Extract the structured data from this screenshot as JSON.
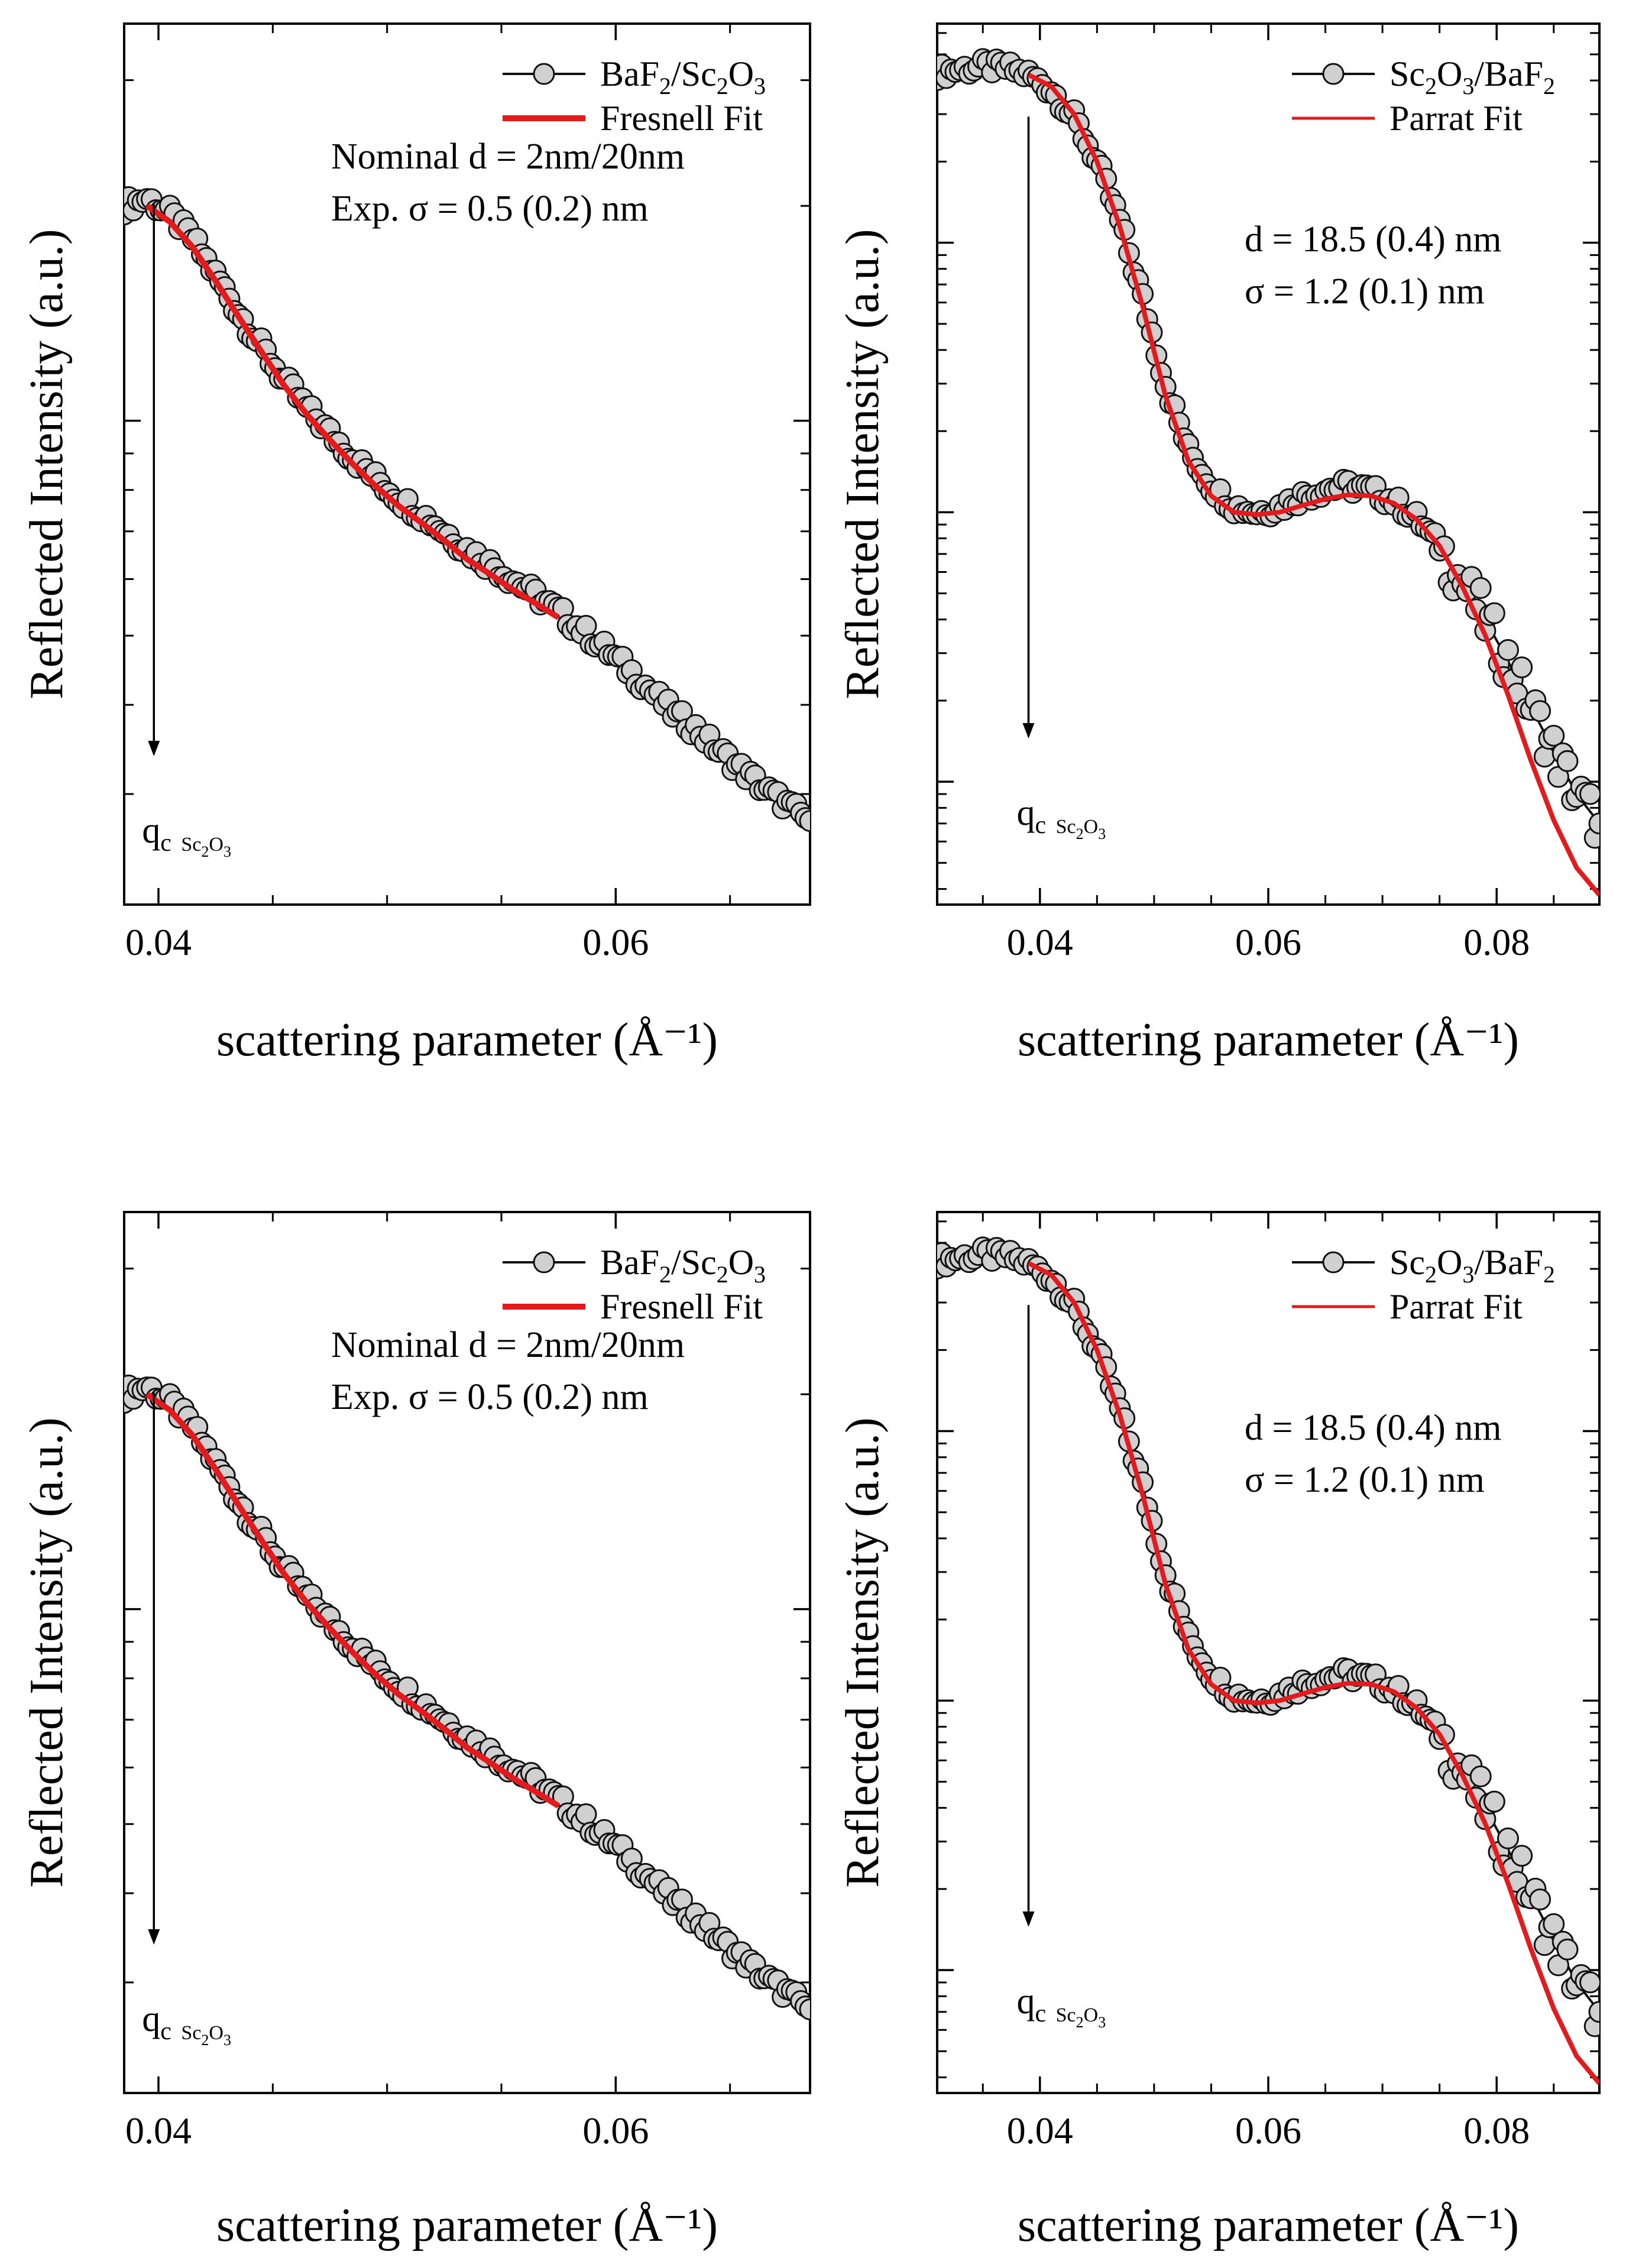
{
  "chart_data": [
    {
      "type": "scatter",
      "title": "",
      "xlabel": "scattering parameter",
      "xlabel_unit": "(Å⁻¹)",
      "ylabel": "Reflected Intensity (a.u.)",
      "xlim": [
        0.0385,
        0.0685
      ],
      "yscale": "log",
      "ylim": [
        0.21,
        3.6
      ],
      "yticks_major": [
        1,
        0.3
      ],
      "xticks": [
        0.04,
        0.06
      ],
      "xtick_labels": [
        "0.04",
        "0.06"
      ],
      "series": [
        {
          "name": "BaF2/Sc2O3",
          "name_main": "BaF",
          "name_sub1": "2",
          "name_mid": "/Sc",
          "name_sub2": "2",
          "name_end": "O",
          "name_sub3": "3",
          "style": "line+markers",
          "x": [
            0.0385,
            0.0395,
            0.0405,
            0.0415,
            0.0425,
            0.0435,
            0.0445,
            0.0455,
            0.0465,
            0.0475,
            0.0485,
            0.0495,
            0.0505,
            0.0515,
            0.0525,
            0.0535,
            0.0545,
            0.0555,
            0.0565,
            0.0575,
            0.0585,
            0.0595,
            0.0605,
            0.0615,
            0.0625,
            0.0635,
            0.0645,
            0.0655,
            0.0665,
            0.0675,
            0.0685
          ],
          "y": [
            2.0,
            2.05,
            1.95,
            1.8,
            1.6,
            1.42,
            1.27,
            1.14,
            1.04,
            0.96,
            0.89,
            0.83,
            0.78,
            0.74,
            0.7,
            0.66,
            0.63,
            0.6,
            0.57,
            0.54,
            0.51,
            0.48,
            0.45,
            0.42,
            0.39,
            0.37,
            0.345,
            0.325,
            0.305,
            0.29,
            0.275
          ]
        },
        {
          "name": "Fresnell Fit",
          "style": "line",
          "color": "#e41a1c",
          "x": [
            0.0395,
            0.0405,
            0.0415,
            0.0425,
            0.0435,
            0.0445,
            0.0455,
            0.0465,
            0.0475,
            0.0485,
            0.0495,
            0.0505,
            0.0515,
            0.0525,
            0.0535,
            0.0545,
            0.0555,
            0.0565,
            0.0575
          ],
          "y": [
            2.0,
            1.9,
            1.75,
            1.57,
            1.4,
            1.25,
            1.12,
            1.02,
            0.94,
            0.87,
            0.81,
            0.76,
            0.72,
            0.68,
            0.64,
            0.61,
            0.58,
            0.555,
            0.53
          ]
        }
      ],
      "annotations": {
        "line1": "Nominal  d = 2nm/20nm",
        "line2": "Exp. σ = 0.5 (0.2) nm",
        "qc_main": "q",
        "qc_sub": "c",
        "qc_material": "Sc",
        "qc_material_sub1": "2",
        "qc_material_mid": "O",
        "qc_material_sub2": "3",
        "qc_arrow_x": 0.0398
      },
      "legend_position": "top-right"
    },
    {
      "type": "scatter",
      "title": "",
      "xlabel": "scattering parameter",
      "xlabel_unit": "(Å⁻¹)",
      "ylabel": "Reflected Intensity (a.u.)",
      "xlim": [
        0.031,
        0.089
      ],
      "yscale": "log",
      "ylim": [
        0.0035,
        6.5
      ],
      "yticks_major": [
        1,
        0.1,
        0.01
      ],
      "xticks": [
        0.04,
        0.06,
        0.08
      ],
      "xtick_labels": [
        "0.04",
        "0.06",
        "0.08"
      ],
      "series": [
        {
          "name": "Sc2O3/BaF2",
          "name_main": "Sc",
          "name_sub1": "2",
          "name_mid": "O",
          "name_sub2": "3",
          "name_end": "/BaF",
          "name_sub3": "2",
          "style": "line+markers",
          "x": [
            0.031,
            0.033,
            0.035,
            0.037,
            0.039,
            0.041,
            0.043,
            0.045,
            0.047,
            0.049,
            0.051,
            0.053,
            0.055,
            0.057,
            0.059,
            0.061,
            0.063,
            0.065,
            0.067,
            0.069,
            0.071,
            0.073,
            0.075,
            0.077,
            0.079,
            0.081,
            0.083,
            0.085,
            0.087,
            0.089
          ],
          "y": [
            4.3,
            4.4,
            4.5,
            4.45,
            4.2,
            3.7,
            2.9,
            2.0,
            1.2,
            0.62,
            0.3,
            0.17,
            0.125,
            0.105,
            0.1,
            0.105,
            0.115,
            0.122,
            0.125,
            0.12,
            0.11,
            0.095,
            0.075,
            0.055,
            0.04,
            0.028,
            0.019,
            0.013,
            0.009,
            0.007
          ]
        },
        {
          "name": "Parrat Fit",
          "style": "line",
          "color": "#e41a1c",
          "x": [
            0.039,
            0.041,
            0.043,
            0.045,
            0.047,
            0.049,
            0.051,
            0.053,
            0.055,
            0.057,
            0.059,
            0.061,
            0.063,
            0.065,
            0.067,
            0.069,
            0.071,
            0.073,
            0.075,
            0.077,
            0.079,
            0.081,
            0.083,
            0.085,
            0.087,
            0.089
          ],
          "y": [
            4.2,
            3.8,
            3.0,
            2.0,
            1.15,
            0.58,
            0.27,
            0.155,
            0.115,
            0.1,
            0.098,
            0.1,
            0.106,
            0.112,
            0.116,
            0.115,
            0.108,
            0.094,
            0.075,
            0.053,
            0.035,
            0.021,
            0.012,
            0.0072,
            0.0048,
            0.0038
          ]
        }
      ],
      "annotations": {
        "line1": "d = 18.5 (0.4) nm",
        "line2": "σ =   1.2 (0.1) nm",
        "qc_main": "q",
        "qc_sub": "c",
        "qc_material": "Sc",
        "qc_material_sub1": "2",
        "qc_material_mid": "O",
        "qc_material_sub2": "3",
        "qc_arrow_x": 0.039
      },
      "legend_position": "top-right"
    },
    {
      "type": "scatter",
      "title": "",
      "xlabel": "scattering parameter",
      "xlabel_unit": "(Å⁻¹)",
      "ylabel": "Reflected Intensity (a.u.)",
      "xlim": [
        0.0385,
        0.0685
      ],
      "yscale": "log",
      "ylim": [
        0.21,
        3.6
      ],
      "yticks_major": [
        1,
        0.3
      ],
      "xticks": [
        0.04,
        0.06
      ],
      "xtick_labels": [
        "0.04",
        "0.06"
      ],
      "series": [
        {
          "name": "BaF2/Sc2O3",
          "name_main": "BaF",
          "name_sub1": "2",
          "name_mid": "/Sc",
          "name_sub2": "2",
          "name_end": "O",
          "name_sub3": "3",
          "style": "line+markers",
          "x": [
            0.0385,
            0.0395,
            0.0405,
            0.0415,
            0.0425,
            0.0435,
            0.0445,
            0.0455,
            0.0465,
            0.0475,
            0.0485,
            0.0495,
            0.0505,
            0.0515,
            0.0525,
            0.0535,
            0.0545,
            0.0555,
            0.0565,
            0.0575,
            0.0585,
            0.0595,
            0.0605,
            0.0615,
            0.0625,
            0.0635,
            0.0645,
            0.0655,
            0.0665,
            0.0675,
            0.0685
          ],
          "y": [
            2.0,
            2.05,
            1.95,
            1.8,
            1.6,
            1.42,
            1.27,
            1.14,
            1.04,
            0.96,
            0.89,
            0.83,
            0.78,
            0.74,
            0.7,
            0.66,
            0.63,
            0.6,
            0.57,
            0.54,
            0.51,
            0.48,
            0.45,
            0.42,
            0.39,
            0.37,
            0.345,
            0.325,
            0.305,
            0.29,
            0.275
          ]
        },
        {
          "name": "Fresnell Fit",
          "style": "line",
          "color": "#e41a1c",
          "x": [
            0.0395,
            0.0405,
            0.0415,
            0.0425,
            0.0435,
            0.0445,
            0.0455,
            0.0465,
            0.0475,
            0.0485,
            0.0495,
            0.0505,
            0.0515,
            0.0525,
            0.0535,
            0.0545,
            0.0555,
            0.0565,
            0.0575
          ],
          "y": [
            2.0,
            1.9,
            1.75,
            1.57,
            1.4,
            1.25,
            1.12,
            1.02,
            0.94,
            0.87,
            0.81,
            0.76,
            0.72,
            0.68,
            0.64,
            0.61,
            0.58,
            0.555,
            0.53
          ]
        }
      ],
      "annotations": {
        "line1": "Nominal  d = 2nm/20nm",
        "line2": "Exp. σ = 0.5 (0.2) nm",
        "qc_main": "q",
        "qc_sub": "c",
        "qc_material": "Sc",
        "qc_material_sub1": "2",
        "qc_material_mid": "O",
        "qc_material_sub2": "3",
        "qc_arrow_x": 0.0398
      },
      "legend_position": "top-right"
    },
    {
      "type": "scatter",
      "title": "",
      "xlabel": "scattering parameter",
      "xlabel_unit": "(Å⁻¹)",
      "ylabel": "Reflected Intensity (a.u.)",
      "xlim": [
        0.031,
        0.089
      ],
      "yscale": "log",
      "ylim": [
        0.0035,
        6.5
      ],
      "yticks_major": [
        1,
        0.1,
        0.01
      ],
      "xticks": [
        0.04,
        0.06,
        0.08
      ],
      "xtick_labels": [
        "0.04",
        "0.06",
        "0.08"
      ],
      "series": [
        {
          "name": "Sc2O3/BaF2",
          "name_main": "Sc",
          "name_sub1": "2",
          "name_mid": "O",
          "name_sub2": "3",
          "name_end": "/BaF",
          "name_sub3": "2",
          "style": "line+markers",
          "x": [
            0.031,
            0.033,
            0.035,
            0.037,
            0.039,
            0.041,
            0.043,
            0.045,
            0.047,
            0.049,
            0.051,
            0.053,
            0.055,
            0.057,
            0.059,
            0.061,
            0.063,
            0.065,
            0.067,
            0.069,
            0.071,
            0.073,
            0.075,
            0.077,
            0.079,
            0.081,
            0.083,
            0.085,
            0.087,
            0.089
          ],
          "y": [
            4.3,
            4.4,
            4.5,
            4.45,
            4.2,
            3.7,
            2.9,
            2.0,
            1.2,
            0.62,
            0.3,
            0.17,
            0.125,
            0.105,
            0.1,
            0.105,
            0.115,
            0.122,
            0.125,
            0.12,
            0.11,
            0.095,
            0.075,
            0.055,
            0.04,
            0.028,
            0.019,
            0.013,
            0.009,
            0.007
          ]
        },
        {
          "name": "Parrat Fit",
          "style": "line",
          "color": "#e41a1c",
          "x": [
            0.039,
            0.041,
            0.043,
            0.045,
            0.047,
            0.049,
            0.051,
            0.053,
            0.055,
            0.057,
            0.059,
            0.061,
            0.063,
            0.065,
            0.067,
            0.069,
            0.071,
            0.073,
            0.075,
            0.077,
            0.079,
            0.081,
            0.083,
            0.085,
            0.087,
            0.089
          ],
          "y": [
            4.2,
            3.8,
            3.0,
            2.0,
            1.15,
            0.58,
            0.27,
            0.155,
            0.115,
            0.1,
            0.098,
            0.1,
            0.106,
            0.112,
            0.116,
            0.115,
            0.108,
            0.094,
            0.075,
            0.053,
            0.035,
            0.021,
            0.012,
            0.0072,
            0.0048,
            0.0038
          ]
        }
      ],
      "annotations": {
        "line1": "d = 18.5 (0.4) nm",
        "line2": "σ =   1.2 (0.1) nm",
        "qc_main": "q",
        "qc_sub": "c",
        "qc_material": "Sc",
        "qc_material_sub1": "2",
        "qc_material_mid": "O",
        "qc_material_sub2": "3",
        "qc_arrow_x": 0.039
      },
      "legend_position": "top-right"
    }
  ]
}
